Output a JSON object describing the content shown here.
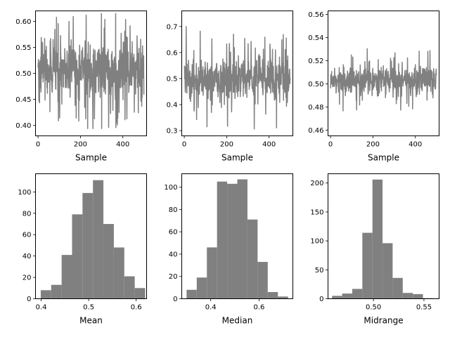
{
  "chart_data": [
    {
      "type": "line",
      "xlabel": "Sample",
      "ylabel": "",
      "xlim": [
        -12,
        512
      ],
      "ylim": [
        0.38,
        0.62
      ],
      "xticks": [
        0,
        200,
        400
      ],
      "yticks": [
        0.4,
        0.45,
        0.5,
        0.55,
        0.6
      ],
      "ytick_decimals": 2,
      "color": "#808080",
      "n": 500,
      "center": 0.505,
      "spread": 0.05,
      "min": 0.394,
      "max": 0.615,
      "grid": false
    },
    {
      "type": "line",
      "xlabel": "Sample",
      "ylabel": "",
      "xlim": [
        -12,
        512
      ],
      "ylim": [
        0.28,
        0.76
      ],
      "xticks": [
        0,
        200,
        400
      ],
      "yticks": [
        0.3,
        0.4,
        0.5,
        0.6,
        0.7
      ],
      "ytick_decimals": 1,
      "color": "#808080",
      "n": 500,
      "center": 0.5,
      "spread": 0.08,
      "min": 0.3,
      "max": 0.73,
      "grid": false
    },
    {
      "type": "line",
      "xlabel": "Sample",
      "ylabel": "",
      "xlim": [
        -12,
        512
      ],
      "ylim": [
        0.455,
        0.563
      ],
      "xticks": [
        0,
        200,
        400
      ],
      "yticks": [
        0.46,
        0.48,
        0.5,
        0.52,
        0.54,
        0.56
      ],
      "ytick_decimals": 2,
      "color": "#808080",
      "n": 500,
      "center": 0.503,
      "spread": 0.011,
      "min": 0.459,
      "max": 0.56,
      "grid": false
    },
    {
      "type": "bar",
      "xlabel": "Mean",
      "ylabel": "",
      "xlim": [
        0.388,
        0.622
      ],
      "ylim": [
        0,
        117
      ],
      "xticks": [
        0.4,
        0.5,
        0.6
      ],
      "yticks": [
        0,
        20,
        40,
        60,
        80,
        100
      ],
      "xtick_decimals": 1,
      "color": "#808080",
      "bin_edges": [
        0.399,
        0.421,
        0.443,
        0.465,
        0.487,
        0.509,
        0.531,
        0.553,
        0.575,
        0.597,
        0.619
      ],
      "values": [
        8,
        13,
        41,
        79,
        99,
        111,
        70,
        48,
        21,
        10
      ],
      "grid": false
    },
    {
      "type": "bar",
      "xlabel": "Median",
      "ylabel": "",
      "xlim": [
        0.28,
        0.74
      ],
      "ylim": [
        0,
        112
      ],
      "xticks": [
        0.4,
        0.6
      ],
      "yticks": [
        0,
        20,
        40,
        60,
        80,
        100
      ],
      "xtick_decimals": 1,
      "color": "#808080",
      "bin_edges": [
        0.3,
        0.342,
        0.384,
        0.426,
        0.468,
        0.51,
        0.552,
        0.594,
        0.636,
        0.678,
        0.72
      ],
      "values": [
        8,
        19,
        46,
        105,
        103,
        107,
        71,
        33,
        6,
        2
      ],
      "grid": false
    },
    {
      "type": "bar",
      "xlabel": "Midrange",
      "ylabel": "",
      "xlim": [
        0.455,
        0.565
      ],
      "ylim": [
        0,
        216
      ],
      "xticks": [
        0.5,
        0.55
      ],
      "yticks": [
        0,
        50,
        100,
        150,
        200
      ],
      "xtick_decimals": 2,
      "color": "#808080",
      "bin_edges": [
        0.459,
        0.469,
        0.479,
        0.489,
        0.499,
        0.509,
        0.519,
        0.529,
        0.539,
        0.549,
        0.559
      ],
      "values": [
        5,
        9,
        17,
        114,
        206,
        96,
        36,
        10,
        8,
        1
      ],
      "grid": false
    }
  ]
}
